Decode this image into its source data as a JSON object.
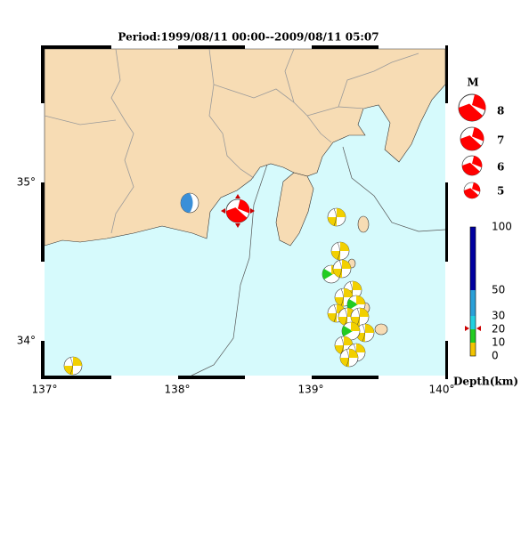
{
  "header": {
    "title": "Period:1999/08/11 00:00--2009/08/11 05:07"
  },
  "map": {
    "longitude_labels": [
      "137°",
      "138°",
      "139°",
      "140°"
    ],
    "latitude_labels": [
      "35°",
      "34°"
    ]
  },
  "magnitude_legend": {
    "title": "M",
    "labels": [
      "8",
      "7",
      "6",
      "5"
    ]
  },
  "depth_legend": {
    "labels": [
      "100",
      "50",
      "30",
      "20",
      "10",
      "0"
    ],
    "title": "Depth(km)"
  }
}
